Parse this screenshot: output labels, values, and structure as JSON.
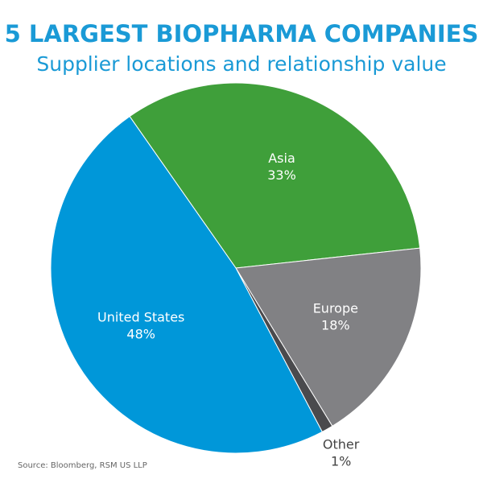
{
  "chart_data": {
    "type": "pie",
    "title": "5 LARGEST BIOPHARMA COMPANIES",
    "subtitle": "Supplier locations and relationship value",
    "source": "Source: Bloomberg, RSM US LLP",
    "categories": [
      "Asia",
      "Europe",
      "Other",
      "United States"
    ],
    "values": [
      33,
      18,
      1,
      48
    ],
    "value_labels": [
      "33%",
      "18%",
      "1%",
      "48%"
    ],
    "colors": [
      "#3f9f3a",
      "#818184",
      "#4a4a4d",
      "#0097d9"
    ]
  }
}
